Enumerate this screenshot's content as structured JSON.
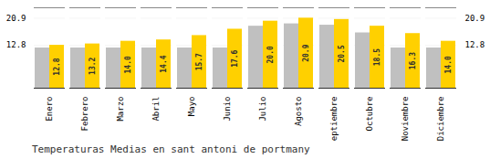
{
  "chart_data": {
    "type": "bar",
    "title": "Temperaturas Medias en sant antoni de portmany",
    "categories": [
      "Enero",
      "Febrero",
      "Marzo",
      "Abril",
      "Mayo",
      "Junio",
      "Julio",
      "Agosto",
      "Septiembre",
      "Octubre",
      "Noviembre",
      "Diciembre"
    ],
    "series": [
      {
        "color": "#C0C0C0",
        "values": [
          12.0,
          12.0,
          12.0,
          12.0,
          12.0,
          12.0,
          18.5,
          19.2,
          18.8,
          16.5,
          12.0,
          12.0
        ]
      },
      {
        "color": "#FFD000",
        "values": [
          12.8,
          13.2,
          14.0,
          14.4,
          15.7,
          17.6,
          20.0,
          20.9,
          20.5,
          18.5,
          16.3,
          14.0
        ],
        "data_labels": true,
        "value_labels": [
          "12.8",
          "13.2",
          "14.0",
          "14.4",
          "15.7",
          "17.6",
          "20.0",
          "20.9",
          "20.5",
          "18.5",
          "16.3",
          "14.0"
        ]
      }
    ],
    "ylim": [
      0,
      24.0
    ],
    "yticks": [
      12.8,
      20.9
    ],
    "grid": true
  }
}
